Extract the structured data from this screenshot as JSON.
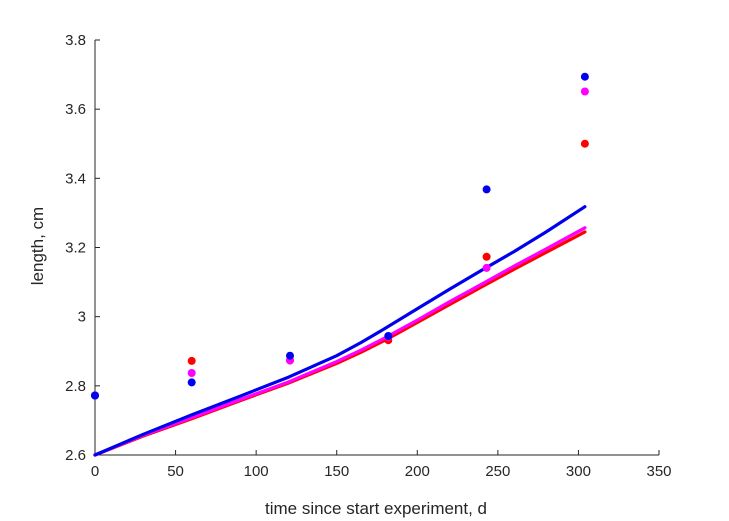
{
  "chart_data": {
    "type": "line",
    "title": "",
    "xlabel": "time since start experiment, d",
    "ylabel": "length, cm",
    "xlim": [
      0,
      350
    ],
    "ylim": [
      2.6,
      3.8
    ],
    "xticks": [
      0,
      50,
      100,
      150,
      200,
      250,
      300,
      350
    ],
    "xtick_labels": [
      "0",
      "50",
      "100",
      "150",
      "200",
      "250",
      "300",
      "350"
    ],
    "yticks": [
      2.6,
      2.8,
      3.0,
      3.2,
      3.4,
      3.6,
      3.8
    ],
    "ytick_labels": [
      "2.6",
      "2.8",
      "3",
      "3.2",
      "3.4",
      "3.6",
      "3.8"
    ],
    "grid": false,
    "legend": "none",
    "series": [
      {
        "color": "#ff0000",
        "line": {
          "x": [
            0,
            30,
            60,
            90,
            120,
            150,
            165,
            180,
            200,
            220,
            240,
            260,
            280,
            304
          ],
          "y": [
            2.6,
            2.655,
            2.705,
            2.757,
            2.808,
            2.865,
            2.897,
            2.932,
            2.983,
            3.035,
            3.086,
            3.137,
            3.186,
            3.245
          ]
        },
        "points": {
          "x": [
            0,
            60,
            121,
            182,
            243,
            304
          ],
          "y": [
            2.772,
            2.872,
            2.874,
            2.932,
            3.173,
            3.5
          ]
        }
      },
      {
        "color": "#ff00ff",
        "line": {
          "x": [
            0,
            30,
            60,
            90,
            120,
            150,
            165,
            180,
            200,
            220,
            240,
            260,
            280,
            304
          ],
          "y": [
            2.6,
            2.657,
            2.708,
            2.76,
            2.811,
            2.87,
            2.903,
            2.939,
            2.99,
            3.043,
            3.094,
            3.146,
            3.196,
            3.257
          ]
        },
        "points": {
          "x": [
            0,
            60,
            121,
            182,
            243,
            304
          ],
          "y": [
            2.772,
            2.837,
            2.873,
            2.941,
            3.141,
            3.651
          ]
        }
      },
      {
        "color": "#0000ee",
        "line": {
          "x": [
            0,
            30,
            60,
            90,
            120,
            150,
            165,
            180,
            200,
            220,
            240,
            260,
            280,
            304
          ],
          "y": [
            2.6,
            2.66,
            2.716,
            2.77,
            2.825,
            2.887,
            2.925,
            2.966,
            3.023,
            3.079,
            3.134,
            3.188,
            3.245,
            3.318
          ]
        },
        "points": {
          "x": [
            0,
            60,
            121,
            182,
            243,
            304
          ],
          "y": [
            2.772,
            2.81,
            2.887,
            2.944,
            3.368,
            3.694
          ]
        }
      }
    ]
  }
}
